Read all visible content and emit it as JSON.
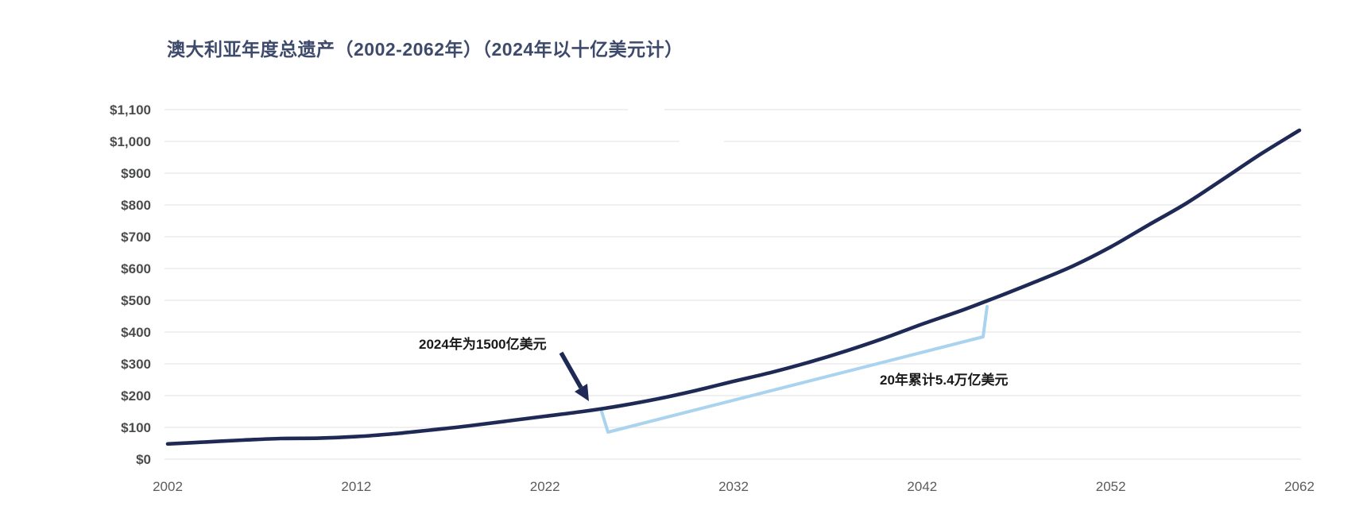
{
  "chart_data": {
    "type": "line",
    "title": "澳大利亚年度总遗产（2002-2062年）（2024年以十亿美元计）",
    "xlabel": "",
    "ylabel": "",
    "xlim": [
      2002,
      2062
    ],
    "ylim": [
      0,
      1100
    ],
    "grid": true,
    "legend": "none",
    "x": [
      2002,
      2004,
      2006,
      2008,
      2010,
      2012,
      2014,
      2016,
      2018,
      2020,
      2022,
      2024,
      2026,
      2028,
      2030,
      2032,
      2034,
      2036,
      2038,
      2040,
      2042,
      2044,
      2046,
      2048,
      2050,
      2052,
      2054,
      2056,
      2058,
      2060,
      2062
    ],
    "values": [
      48,
      54,
      60,
      65,
      66,
      71,
      80,
      92,
      105,
      120,
      135,
      150,
      168,
      190,
      216,
      245,
      273,
      305,
      341,
      381,
      425,
      466,
      511,
      558,
      608,
      668,
      737,
      805,
      883,
      962,
      1035
    ],
    "yticks": [
      {
        "value": 0,
        "label": "$0"
      },
      {
        "value": 100,
        "label": "$100"
      },
      {
        "value": 200,
        "label": "$200"
      },
      {
        "value": 300,
        "label": "$300"
      },
      {
        "value": 400,
        "label": "$400"
      },
      {
        "value": 500,
        "label": "$500"
      },
      {
        "value": 600,
        "label": "$600"
      },
      {
        "value": 700,
        "label": "$700"
      },
      {
        "value": 800,
        "label": "$800"
      },
      {
        "value": 900,
        "label": "$900"
      },
      {
        "value": 1000,
        "label": "$1,000"
      },
      {
        "value": 1100,
        "label": "$1,100"
      }
    ],
    "xticks": [
      {
        "value": 2002,
        "label": "2002"
      },
      {
        "value": 2012,
        "label": "2012"
      },
      {
        "value": 2022,
        "label": "2022"
      },
      {
        "value": 2032,
        "label": "2032"
      },
      {
        "value": 2042,
        "label": "2042"
      },
      {
        "value": 2052,
        "label": "2052"
      },
      {
        "value": 2062,
        "label": "2062"
      }
    ],
    "annotations": [
      {
        "id": "callout-2024",
        "type": "arrow-callout",
        "text": "2024年为1500亿美元",
        "target_year": 2024,
        "target_value": 150
      },
      {
        "id": "cumulative-20yr",
        "type": "bracket",
        "text": "20年累计5.4万亿美元",
        "from_year": 2025,
        "to_year": 2045
      }
    ],
    "colors": {
      "line": "#1e2a55",
      "arrow": "#1e2a55",
      "bracket": "#a9d3ee",
      "grid": "#ececef",
      "title": "#3e4a6c",
      "ytick_labels": "#4b4c4e",
      "xtick_labels": "#5a5b5d",
      "annotation_text": "#1a1a1a",
      "background": "#ffffff"
    }
  }
}
